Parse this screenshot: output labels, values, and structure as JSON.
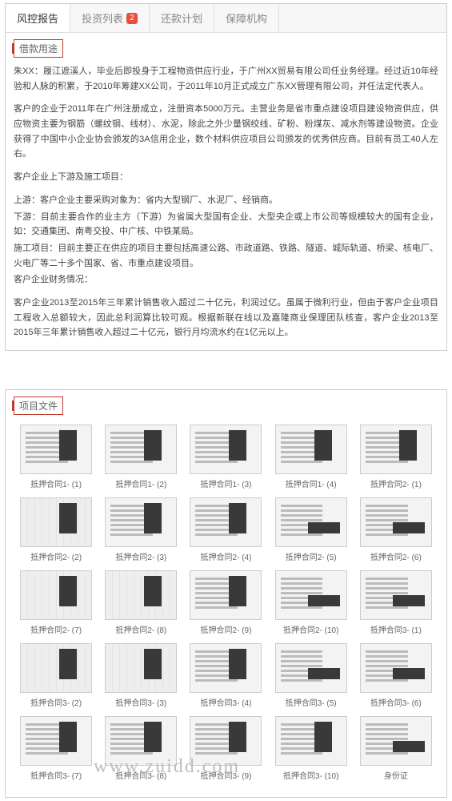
{
  "tabs": [
    {
      "label": "风控报告",
      "active": true
    },
    {
      "label": "投资列表",
      "badge": "2"
    },
    {
      "label": "还款计划"
    },
    {
      "label": "保障机构"
    }
  ],
  "loan": {
    "title": "借款用途",
    "p1": "朱XX：履江遮溪人，毕业后即投身于工程物资供应行业，于广州XX贸易有限公司任业务经理。经过近10年经验和人脉的积累，于2010年筹建XX公司，于2011年10月正式成立广东XX管理有限公司，并任法定代表人。",
    "p2": "客户的企业于2011年在广州注册成立，注册资本5000万元。主营业务是省市重点建设项目建设物资供应，供应物资主要为钢筋（螺纹钢、线材）、水泥，除此之外少量钢绞线、矿粉、粉煤灰、减水剂等建设物资。企业获得了中国中小企业协会颁发的3A信用企业，数个材料供应项目公司颁发的优秀供应商。目前有员工40人左右。",
    "p3": "客户企业上下游及施工项目：",
    "p4": "上游：客户企业主要采购对象为：省内大型钢厂、水泥厂、经销商。",
    "p5": "下游：目前主要合作的业主方（下游）为省属大型国有企业、大型央企或上市公司等规模较大的国有企业，如：交通集团、南粤交投、中广核、中铁某局。",
    "p6": "施工项目：目前主要正在供应的项目主要包括高速公路、市政道路、铁路、隧道、城际轨道、桥梁、核电厂、火电厂等二十多个国家、省、市重点建设项目。",
    "p7": "客户企业财务情况：",
    "p8": "客户企业2013至2015年三年累计销售收入超过二十亿元，利润过亿。虽属于微利行业，但由于客户企业项目工程收入总额较大，因此总利润算比较可观。根据新联在线以及嘉隆商业保理团队核查，客户企业2013至2015年三年累计销售收入超过二十亿元，银行月均流水约在1亿元以上。"
  },
  "files": {
    "title": "项目文件",
    "items": [
      {
        "label": "抵押合同1- (1)",
        "variant": "doc"
      },
      {
        "label": "抵押合同1- (2)",
        "variant": "doc"
      },
      {
        "label": "抵押合同1- (3)",
        "variant": "doc"
      },
      {
        "label": "抵押合同1- (4)",
        "variant": "doc"
      },
      {
        "label": "抵押合同2- (1)",
        "variant": "doc"
      },
      {
        "label": "抵押合同2- (2)",
        "variant": "plan"
      },
      {
        "label": "抵押合同2- (3)",
        "variant": "doc"
      },
      {
        "label": "抵押合同2- (4)",
        "variant": "doc"
      },
      {
        "label": "抵押合同2- (5)",
        "variant": "var2"
      },
      {
        "label": "抵押合同2- (6)",
        "variant": "var2"
      },
      {
        "label": "抵押合同2- (7)",
        "variant": "plan"
      },
      {
        "label": "抵押合同2- (8)",
        "variant": "plan"
      },
      {
        "label": "抵押合同2- (9)",
        "variant": "doc"
      },
      {
        "label": "抵押合同2- (10)",
        "variant": "var2"
      },
      {
        "label": "抵押合同3- (1)",
        "variant": "var2"
      },
      {
        "label": "抵押合同3- (2)",
        "variant": "plan"
      },
      {
        "label": "抵押合同3- (3)",
        "variant": "plan"
      },
      {
        "label": "抵押合同3- (4)",
        "variant": "doc"
      },
      {
        "label": "抵押合同3- (5)",
        "variant": "var2"
      },
      {
        "label": "抵押合同3- (6)",
        "variant": "var2"
      },
      {
        "label": "抵押合同3- (7)",
        "variant": "doc"
      },
      {
        "label": "抵押合同3- (8)",
        "variant": "doc"
      },
      {
        "label": "抵押合同3- (9)",
        "variant": "doc"
      },
      {
        "label": "抵押合同3- (10)",
        "variant": "doc"
      },
      {
        "label": "身份证",
        "variant": "var2"
      }
    ]
  },
  "watermark": "www.zuidd.com"
}
